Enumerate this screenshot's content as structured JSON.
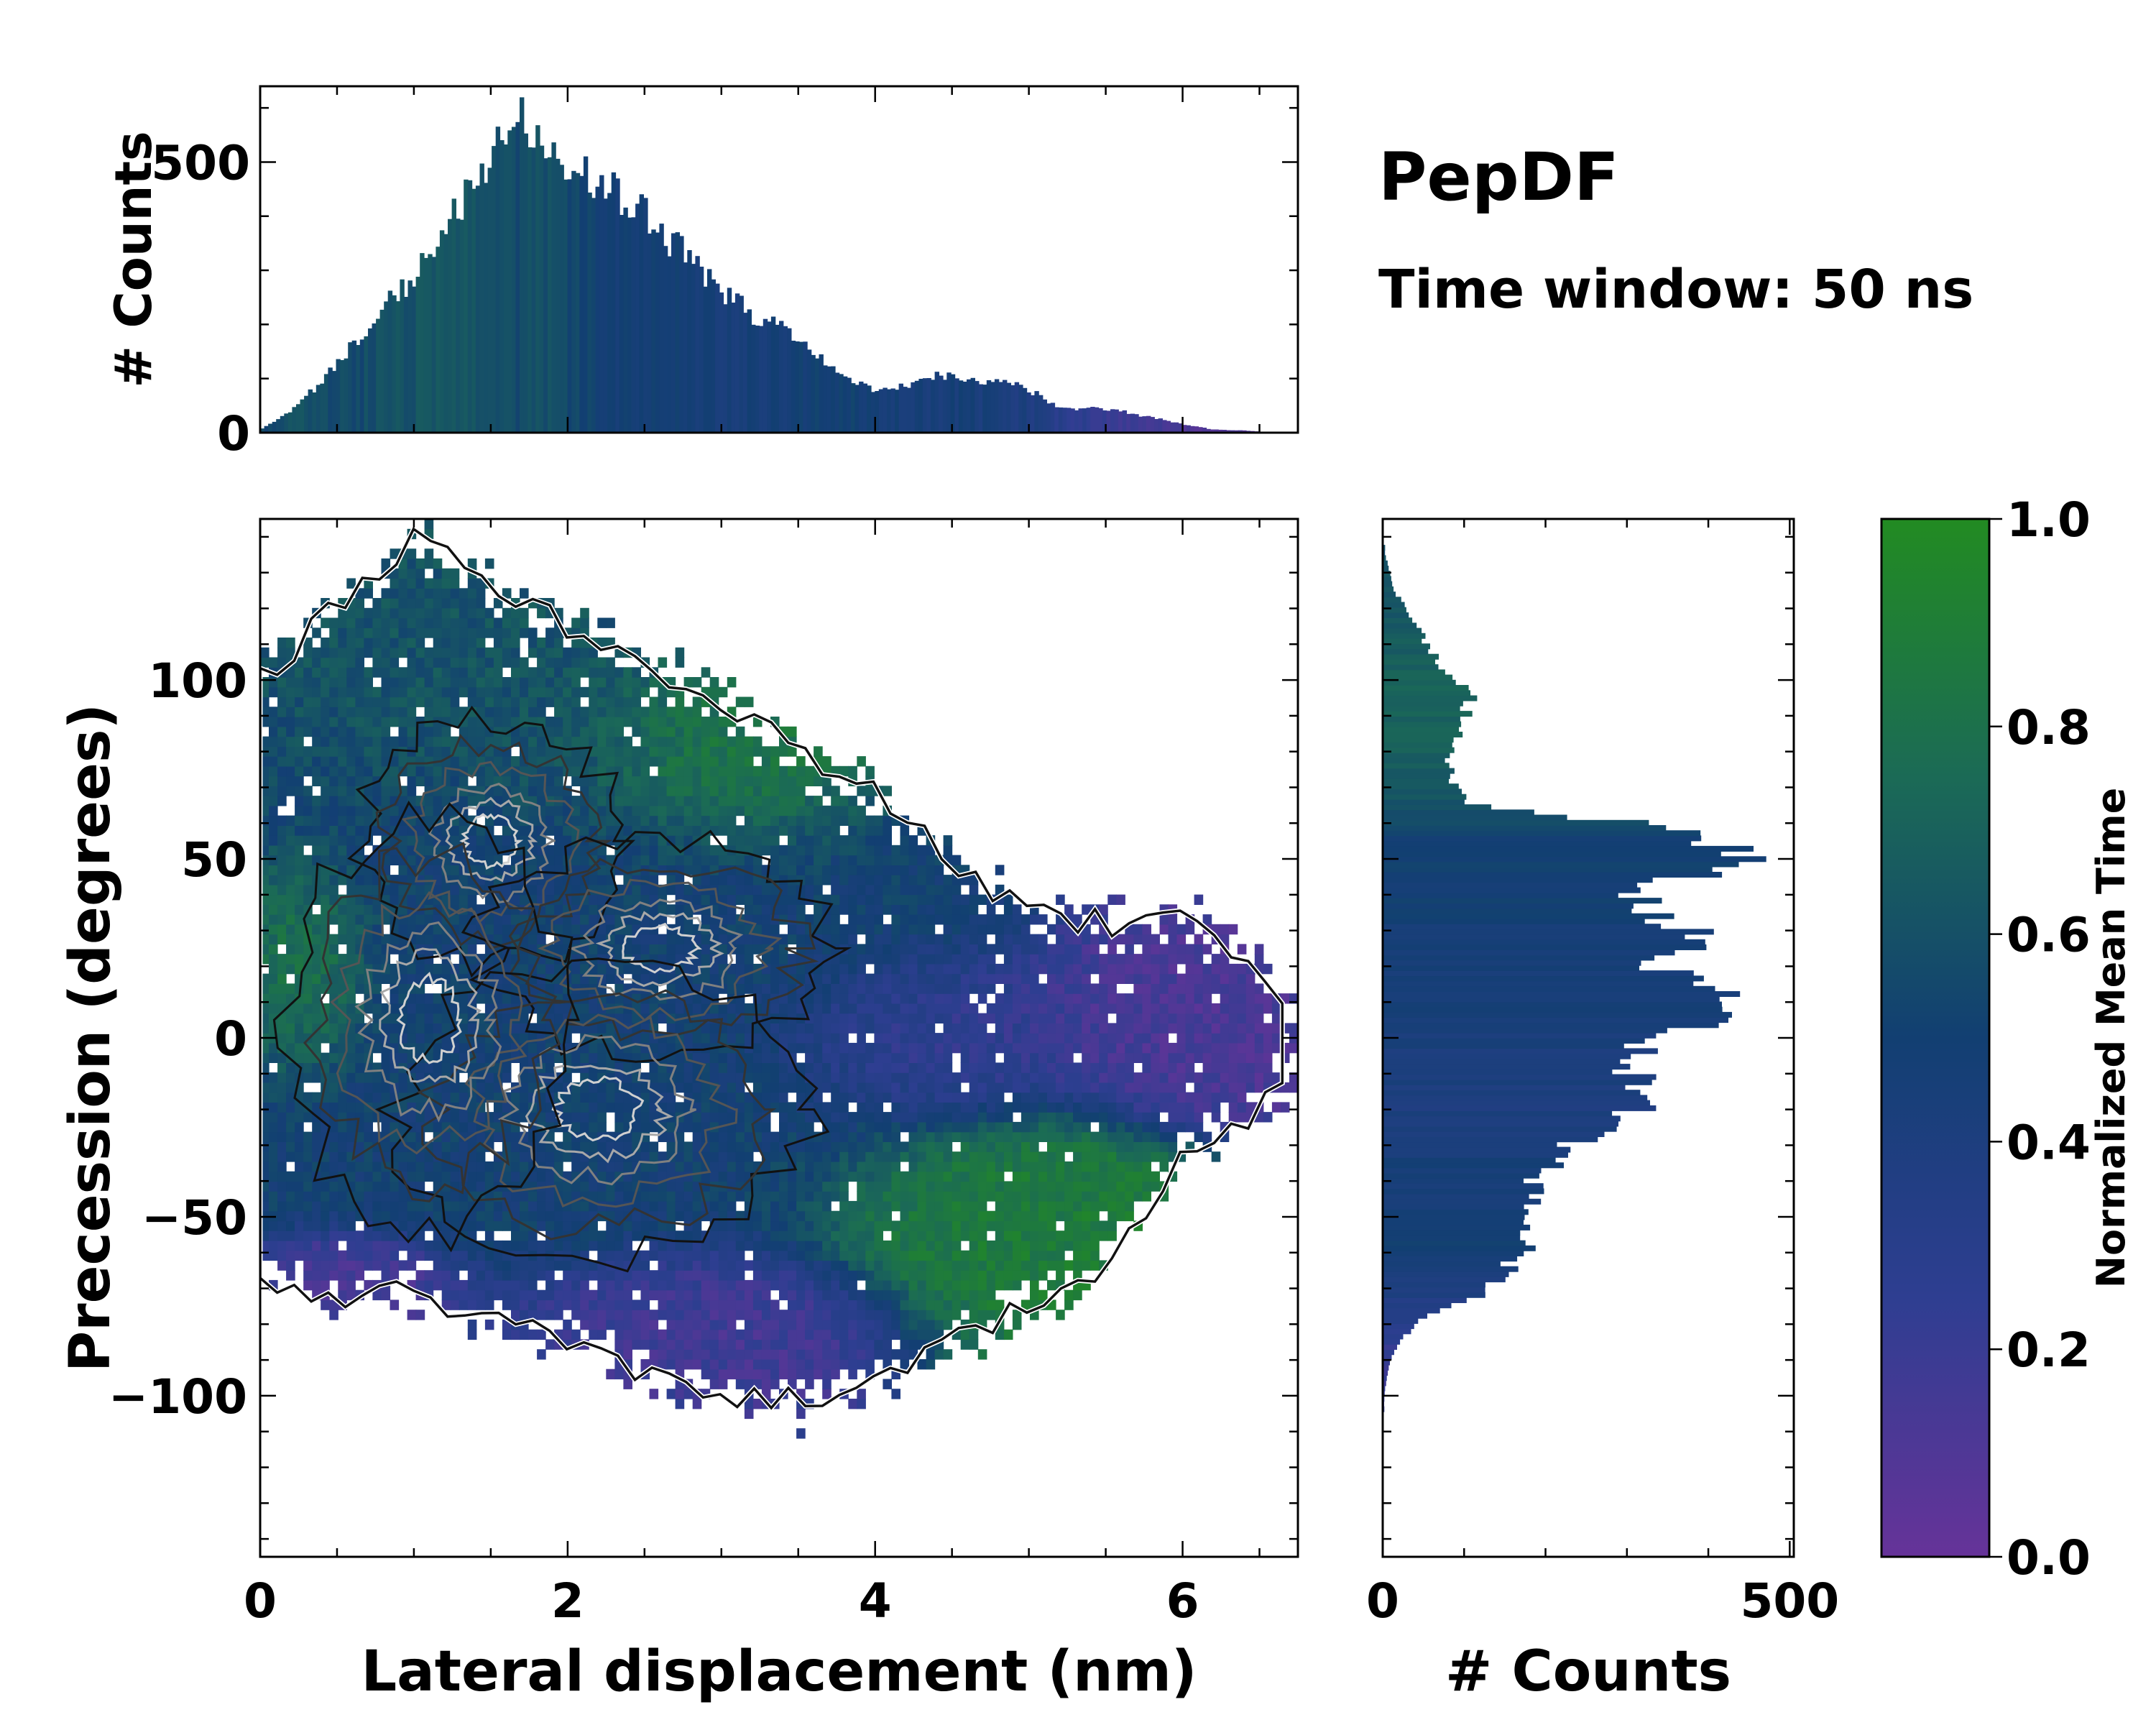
{
  "title": "PepDF",
  "subtitle": "Time window: 50 ns",
  "colors": {
    "cmap_low": "#663399",
    "cmap_mid_low": "#2a3f8f",
    "cmap_mid": "#0f3f6e",
    "cmap_mid_high": "#1e6a52",
    "cmap_high": "#228b22",
    "contour_dark": "#111111",
    "contour_light": "#d8d8d8"
  },
  "chart_data": [
    {
      "id": "joint",
      "type": "heatmap",
      "xlabel": "Lateral displacement (nm)",
      "ylabel": "Precession (degrees)",
      "xlim": [
        0,
        6.75
      ],
      "ylim": [
        -145,
        145
      ],
      "xticks": [
        "0",
        "2",
        "4",
        "6"
      ],
      "xtick_values": [
        0,
        2,
        4,
        6
      ],
      "yticks": [
        "100",
        "50",
        "0",
        "−50",
        "−100"
      ],
      "ytick_values": [
        100,
        50,
        0,
        -50,
        -100
      ],
      "regions": [
        {
          "name": "core",
          "cx": 2.3,
          "cy": 15,
          "rx": 2.2,
          "ry": 70,
          "value": 0.5
        },
        {
          "name": "upper-left",
          "cx": 1.6,
          "cy": 95,
          "rx": 1.3,
          "ry": 35,
          "value": 0.62
        },
        {
          "name": "upper-right-green",
          "cx": 3.0,
          "cy": 80,
          "rx": 0.9,
          "ry": 25,
          "value": 0.9
        },
        {
          "name": "right-purple",
          "cx": 5.9,
          "cy": 10,
          "rx": 0.8,
          "ry": 25,
          "value": 0.12
        },
        {
          "name": "mid-purple",
          "cx": 4.3,
          "cy": 0,
          "rx": 0.9,
          "ry": 20,
          "value": 0.2
        },
        {
          "name": "lower-green",
          "cx": 4.8,
          "cy": -55,
          "rx": 1.0,
          "ry": 28,
          "value": 0.88
        },
        {
          "name": "lower-purple",
          "cx": 3.0,
          "cy": -80,
          "rx": 1.1,
          "ry": 18,
          "value": 0.15
        },
        {
          "name": "left-lower-purple",
          "cx": 0.6,
          "cy": -70,
          "rx": 0.6,
          "ry": 12,
          "value": 0.12
        },
        {
          "name": "left-green",
          "cx": 0.3,
          "cy": 20,
          "rx": 0.4,
          "ry": 25,
          "value": 0.85
        }
      ],
      "density_peaks": [
        {
          "x": 1.5,
          "y": 55,
          "sx": 0.45,
          "sy": 18
        },
        {
          "x": 2.6,
          "y": 25,
          "sx": 0.6,
          "sy": 16
        },
        {
          "x": 2.2,
          "y": -20,
          "sx": 0.7,
          "sy": 22
        },
        {
          "x": 1.1,
          "y": 5,
          "sx": 0.5,
          "sy": 30
        }
      ]
    },
    {
      "id": "top-histogram",
      "type": "bar",
      "ylabel": "# Counts",
      "xlim": [
        0,
        6.75
      ],
      "ylim": [
        0,
        640
      ],
      "yticks": [
        "500",
        "0"
      ],
      "ytick_values": [
        500,
        0
      ],
      "x": [
        0.0,
        0.2,
        0.4,
        0.6,
        0.8,
        1.0,
        1.2,
        1.4,
        1.6,
        1.7,
        1.8,
        2.0,
        2.2,
        2.4,
        2.6,
        2.8,
        3.0,
        3.2,
        3.4,
        3.6,
        3.8,
        4.0,
        4.2,
        4.4,
        4.6,
        4.8,
        5.0,
        5.2,
        5.4,
        5.6,
        5.8,
        6.0,
        6.2,
        6.4,
        6.6
      ],
      "values": [
        5,
        40,
        95,
        160,
        230,
        290,
        370,
        470,
        540,
        570,
        530,
        500,
        470,
        430,
        370,
        320,
        265,
        220,
        190,
        145,
        105,
        75,
        85,
        105,
        100,
        95,
        80,
        45,
        45,
        40,
        28,
        15,
        6,
        4,
        0
      ],
      "colors_value": [
        0.55,
        0.6,
        0.58,
        0.55,
        0.6,
        0.62,
        0.62,
        0.6,
        0.58,
        0.55,
        0.6,
        0.55,
        0.5,
        0.48,
        0.5,
        0.48,
        0.45,
        0.45,
        0.45,
        0.5,
        0.5,
        0.48,
        0.45,
        0.45,
        0.45,
        0.42,
        0.4,
        0.3,
        0.25,
        0.2,
        0.15,
        0.12,
        0.1,
        0.1,
        0.1
      ]
    },
    {
      "id": "right-histogram",
      "type": "bar",
      "orientation": "horizontal",
      "xlabel": "# Counts",
      "xlim": [
        0,
        505
      ],
      "ylim": [
        -145,
        145
      ],
      "xticks": [
        "0",
        "500"
      ],
      "xtick_values": [
        0,
        500
      ],
      "y": [
        135,
        125,
        115,
        105,
        95,
        85,
        75,
        65,
        60,
        55,
        50,
        45,
        40,
        35,
        30,
        25,
        20,
        15,
        10,
        5,
        0,
        -5,
        -10,
        -15,
        -20,
        -25,
        -30,
        -35,
        -40,
        -45,
        -50,
        -55,
        -60,
        -65,
        -70,
        -75,
        -80,
        -85,
        -90,
        -95,
        -100
      ],
      "values": [
        3,
        15,
        40,
        70,
        110,
        90,
        80,
        105,
        310,
        400,
        440,
        375,
        310,
        330,
        375,
        390,
        340,
        390,
        410,
        440,
        330,
        300,
        310,
        315,
        310,
        265,
        235,
        210,
        190,
        185,
        180,
        170,
        175,
        150,
        135,
        80,
        40,
        20,
        10,
        5,
        2
      ],
      "colors_value": [
        0.6,
        0.62,
        0.65,
        0.68,
        0.72,
        0.7,
        0.65,
        0.6,
        0.55,
        0.5,
        0.5,
        0.48,
        0.5,
        0.48,
        0.45,
        0.45,
        0.45,
        0.45,
        0.45,
        0.45,
        0.42,
        0.42,
        0.4,
        0.42,
        0.4,
        0.42,
        0.42,
        0.45,
        0.45,
        0.45,
        0.48,
        0.48,
        0.48,
        0.45,
        0.4,
        0.35,
        0.3,
        0.25,
        0.2,
        0.2,
        0.2
      ]
    },
    {
      "id": "colorbar",
      "type": "colorbar",
      "label": "Normalized Mean Time",
      "range": [
        0.0,
        1.0
      ],
      "ticks": [
        "1.0",
        "0.8",
        "0.6",
        "0.4",
        "0.2",
        "0.0"
      ],
      "tick_values": [
        1.0,
        0.8,
        0.6,
        0.4,
        0.2,
        0.0
      ]
    }
  ]
}
